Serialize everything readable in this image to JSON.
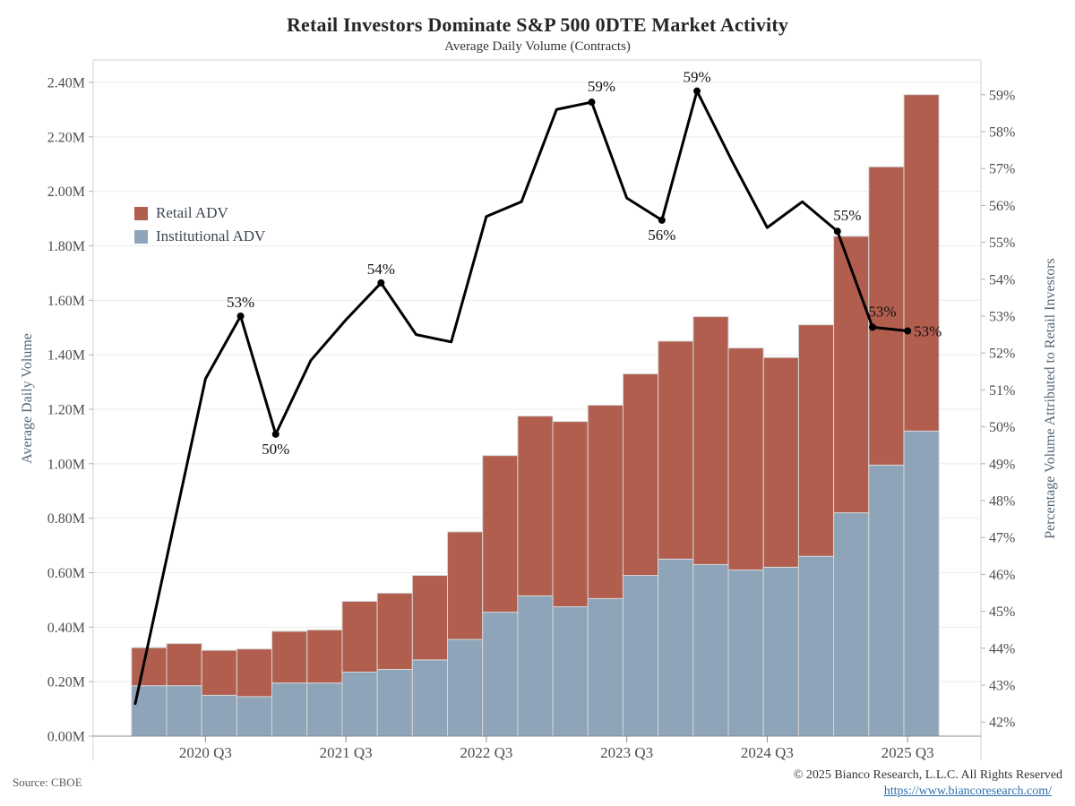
{
  "header": {
    "title": "Retail Investors Dominate S&P 500 0DTE Market Activity",
    "subtitle": "Average Daily Volume (Contracts)"
  },
  "footer": {
    "source": "Source: CBOE",
    "copyright": "© 2025 Bianco Research, L.L.C. All Rights Reserved",
    "link": "https://www.biancoresearch.com/"
  },
  "chart_data": {
    "type": "bar",
    "subtype": "stacked-bars-with-percentage-line",
    "title": "Retail Investors Dominate S&P 500 0DTE Market Activity",
    "subtitle": "Average Daily Volume (Contracts)",
    "categories": [
      "2020 Q1",
      "2020 Q2",
      "2020 Q3",
      "2020 Q4",
      "2021 Q1",
      "2021 Q2",
      "2021 Q3",
      "2021 Q4",
      "2022 Q1",
      "2022 Q2",
      "2022 Q3",
      "2022 Q4",
      "2023 Q1",
      "2023 Q2",
      "2023 Q3",
      "2023 Q4",
      "2024 Q1",
      "2024 Q2",
      "2024 Q3",
      "2024 Q4",
      "2025 Q1",
      "2025 Q2",
      "2025 Q3"
    ],
    "series": [
      {
        "name": "Retail ADV",
        "color": "#b25e4f",
        "unit": "M contracts",
        "values": [
          0.14,
          0.155,
          0.165,
          0.175,
          0.19,
          0.195,
          0.26,
          0.28,
          0.31,
          0.395,
          0.575,
          0.66,
          0.68,
          0.71,
          0.74,
          0.8,
          0.91,
          0.815,
          0.77,
          0.85,
          1.015,
          1.095,
          1.235
        ]
      },
      {
        "name": "Institutional ADV",
        "color": "#8da4b9",
        "unit": "M contracts",
        "values": [
          0.185,
          0.185,
          0.15,
          0.145,
          0.195,
          0.195,
          0.235,
          0.245,
          0.28,
          0.355,
          0.455,
          0.515,
          0.475,
          0.505,
          0.59,
          0.65,
          0.63,
          0.61,
          0.62,
          0.66,
          0.82,
          0.995,
          1.12
        ]
      }
    ],
    "pct_line": {
      "name": "Percentage Volume Attributed to Retail Investors",
      "color": "#000000",
      "values": [
        42.5,
        46.9,
        51.3,
        53.0,
        49.8,
        51.8,
        52.9,
        53.9,
        52.5,
        52.3,
        55.7,
        56.1,
        58.6,
        58.8,
        56.2,
        55.6,
        59.1,
        57.2,
        55.4,
        56.1,
        55.3,
        52.7,
        52.6
      ]
    },
    "pct_labels": [
      {
        "index": 3,
        "text": "53%",
        "placement": "above"
      },
      {
        "index": 4,
        "text": "50%",
        "placement": "below"
      },
      {
        "index": 7,
        "text": "54%",
        "placement": "above"
      },
      {
        "index": 13,
        "text": "59%",
        "placement": "above-right"
      },
      {
        "index": 15,
        "text": "56%",
        "placement": "below"
      },
      {
        "index": 16,
        "text": "59%",
        "placement": "above"
      },
      {
        "index": 20,
        "text": "55%",
        "placement": "above-right"
      },
      {
        "index": 21,
        "text": "53%",
        "placement": "above-right"
      },
      {
        "index": 22,
        "text": "53%",
        "placement": "right"
      }
    ],
    "left_axis": {
      "title": "Average Daily Volume",
      "min": 0,
      "max": 2.4,
      "ticks": [
        "0.00M",
        "0.20M",
        "0.40M",
        "0.60M",
        "0.80M",
        "1.00M",
        "1.20M",
        "1.40M",
        "1.60M",
        "1.80M",
        "2.00M",
        "2.20M",
        "2.40M"
      ]
    },
    "right_axis": {
      "title": "Percentage Volume Attributed to Retail Investors",
      "min": 42,
      "max": 59,
      "ticks": [
        "42%",
        "43%",
        "44%",
        "45%",
        "46%",
        "47%",
        "48%",
        "49%",
        "50%",
        "51%",
        "52%",
        "53%",
        "54%",
        "55%",
        "56%",
        "57%",
        "58%",
        "59%"
      ]
    },
    "x_axis": {
      "tick_labels": [
        "2020 Q3",
        "2021 Q3",
        "2022 Q3",
        "2023 Q3",
        "2024 Q3",
        "2025 Q3"
      ],
      "tick_indices": [
        2,
        6,
        10,
        14,
        18,
        22
      ]
    },
    "grid": "horizontal-light",
    "legend_position": "upper-left-inside"
  }
}
